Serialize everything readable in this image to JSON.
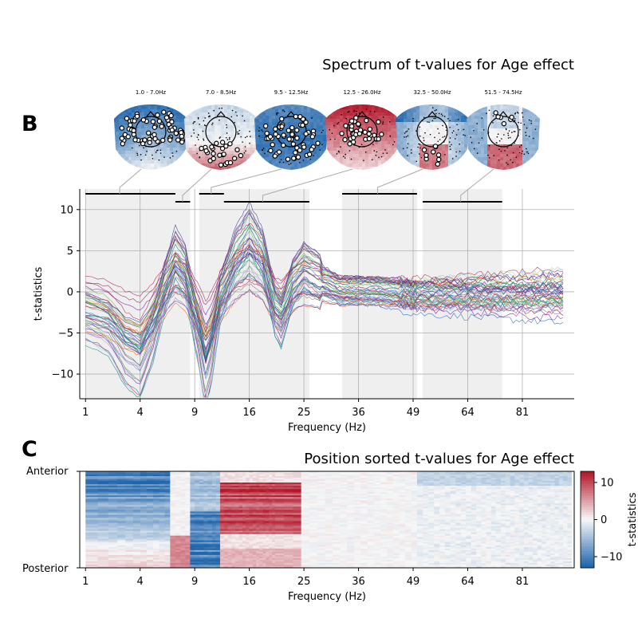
{
  "panel_b": {
    "label": "B",
    "title": "Spectrum of t-values for Age effect",
    "topo_labels": [
      "1.0 - 7.0Hz",
      "7.0 - 8.5Hz",
      "9.5 - 12.5Hz",
      "12.5 - 26.0Hz",
      "32.5 - 50.0Hz",
      "51.5 - 74.5Hz"
    ]
  },
  "panel_c": {
    "label": "C",
    "title": "Position sorted t-values for Age effect",
    "y_top_label": "Anterior",
    "y_bottom_label": "Posterior",
    "colorbar_label": "t-statistics",
    "colorbar_ticks": [
      "10",
      "0",
      "−10"
    ]
  },
  "colors": {
    "grid": "#b0b0b0",
    "shade": "#efefef",
    "neg": "#1f5c9c",
    "pos": "#b2182b"
  },
  "chart_data": [
    {
      "type": "line",
      "title": "Spectrum of t-values for Age effect",
      "xlabel": "Frequency (Hz)",
      "ylabel": "t-statistics",
      "x_scale": "sqrt",
      "xlim": [
        0.8,
        99
      ],
      "ylim": [
        -13,
        12.5
      ],
      "xticks": [
        1,
        4,
        9,
        16,
        25,
        36,
        49,
        64,
        81
      ],
      "yticks": [
        -10,
        -5,
        0,
        5,
        10
      ],
      "grid": true,
      "shaded_ranges_hz": [
        [
          1.0,
          8.5
        ],
        [
          9.5,
          26.0
        ],
        [
          32.5,
          50.0
        ],
        [
          51.5,
          74.5
        ]
      ],
      "significance_bars": [
        {
          "range_hz": [
            1.0,
            7.0
          ],
          "level": "upper"
        },
        {
          "range_hz": [
            7.0,
            8.5
          ],
          "level": "lower"
        },
        {
          "range_hz": [
            9.5,
            12.5
          ],
          "level": "upper"
        },
        {
          "range_hz": [
            12.5,
            26.0
          ],
          "level": "lower"
        },
        {
          "range_hz": [
            32.5,
            50.0
          ],
          "level": "upper"
        },
        {
          "range_hz": [
            51.5,
            74.5
          ],
          "level": "lower"
        }
      ],
      "series_summary": {
        "count": "many channels (one line per sensor)",
        "envelope_max": [
          [
            1,
            4
          ],
          [
            4,
            -4
          ],
          [
            7.5,
            6.3
          ],
          [
            10.5,
            -4
          ],
          [
            15.5,
            10.5
          ],
          [
            20,
            6
          ],
          [
            25,
            3.5
          ],
          [
            36,
            5.5
          ],
          [
            49,
            5
          ],
          [
            64,
            4.5
          ],
          [
            95,
            4
          ]
        ],
        "envelope_min": [
          [
            1,
            -7.5
          ],
          [
            4,
            -12
          ],
          [
            7.5,
            -2
          ],
          [
            10.5,
            -12.3
          ],
          [
            15.5,
            -1
          ],
          [
            20,
            -6.5
          ],
          [
            25,
            -2
          ],
          [
            36,
            -4
          ],
          [
            49,
            -5
          ],
          [
            64,
            -5
          ],
          [
            95,
            -5
          ]
        ]
      }
    },
    {
      "type": "heatmap",
      "title": "Position sorted t-values for Age effect",
      "xlabel": "Frequency (Hz)",
      "ylabel_top": "Anterior",
      "ylabel_bottom": "Posterior",
      "x_scale": "sqrt",
      "xticks": [
        1,
        4,
        9,
        16,
        25,
        36,
        49,
        64,
        81
      ],
      "colorbar": {
        "label": "t-statistics",
        "range": [
          -13,
          13
        ],
        "ticks": [
          10,
          0,
          -10
        ],
        "colormap": "RdBu_r"
      }
    }
  ]
}
